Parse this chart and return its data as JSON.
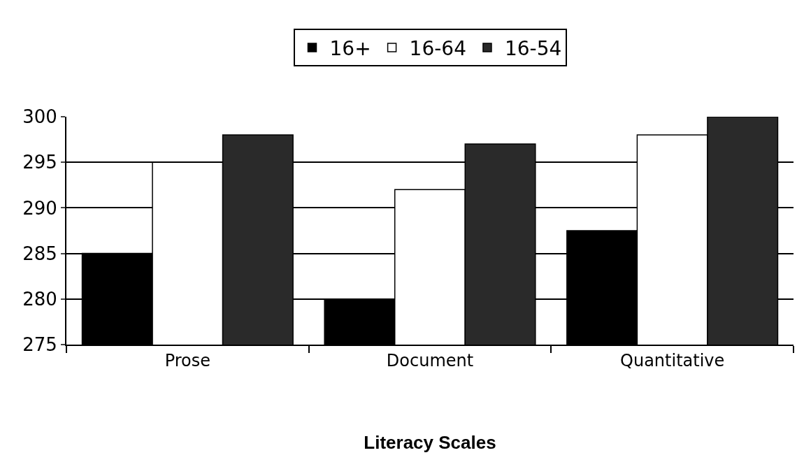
{
  "chart_data": {
    "type": "bar",
    "xlabel": "Literacy Scales",
    "categories": [
      "Prose",
      "Document",
      "Quantitative"
    ],
    "series": [
      {
        "name": "16+",
        "color": "#000000",
        "values": [
          285,
          280,
          287.5
        ]
      },
      {
        "name": "16-64",
        "color": "#ffffff",
        "values": [
          295,
          292,
          298
        ]
      },
      {
        "name": "16-54",
        "color": "#2a2a2a",
        "values": [
          298,
          297,
          300
        ]
      }
    ],
    "ylim": [
      275,
      300
    ],
    "yticks": [
      275,
      280,
      285,
      290,
      295,
      300
    ],
    "grid": "y",
    "legend": "top"
  }
}
